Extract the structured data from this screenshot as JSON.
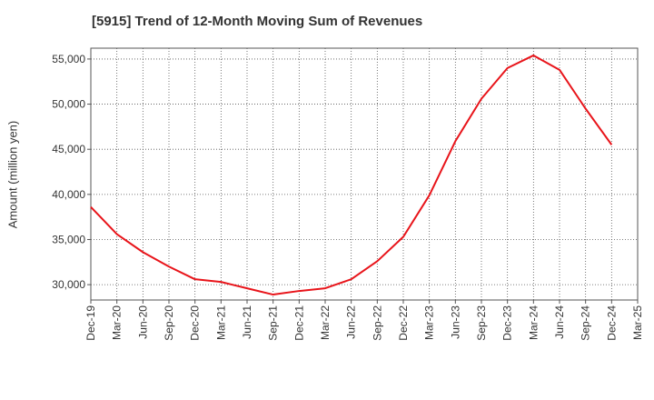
{
  "chart_data": {
    "type": "line",
    "title": "[5915]  Trend of 12-Month Moving Sum of Revenues",
    "ylabel": "Amount (million yen)",
    "xlabel": "",
    "x_ticks": [
      "Dec-19",
      "Mar-20",
      "Jun-20",
      "Sep-20",
      "Dec-20",
      "Mar-21",
      "Jun-21",
      "Sep-21",
      "Dec-21",
      "Mar-22",
      "Jun-22",
      "Sep-22",
      "Dec-22",
      "Mar-23",
      "Jun-23",
      "Sep-23",
      "Dec-23",
      "Mar-24",
      "Jun-24",
      "Sep-24",
      "Dec-24",
      "Mar-25"
    ],
    "y_ticks": [
      "30,000",
      "35,000",
      "40,000",
      "45,000",
      "50,000",
      "55,000"
    ],
    "y_tick_values": [
      30000,
      35000,
      40000,
      45000,
      50000,
      55000
    ],
    "ylim": [
      28300,
      56200
    ],
    "grid": true,
    "line_color": "#e8141a",
    "series": [
      {
        "x": [
          "Dec-19",
          "Mar-20",
          "Jun-20",
          "Sep-20",
          "Dec-20",
          "Mar-21",
          "Jun-21",
          "Sep-21",
          "Dec-21",
          "Mar-22",
          "Jun-22",
          "Sep-22",
          "Dec-22",
          "Mar-23",
          "Jun-23",
          "Sep-23",
          "Dec-23",
          "Mar-24",
          "Jun-24",
          "Sep-24",
          "Dec-24"
        ],
        "values": [
          38600,
          35600,
          33600,
          32000,
          30600,
          30300,
          29600,
          28900,
          29300,
          29600,
          30600,
          32600,
          35300,
          39900,
          45900,
          50600,
          54000,
          55400,
          53800,
          49500,
          45500
        ]
      }
    ]
  }
}
